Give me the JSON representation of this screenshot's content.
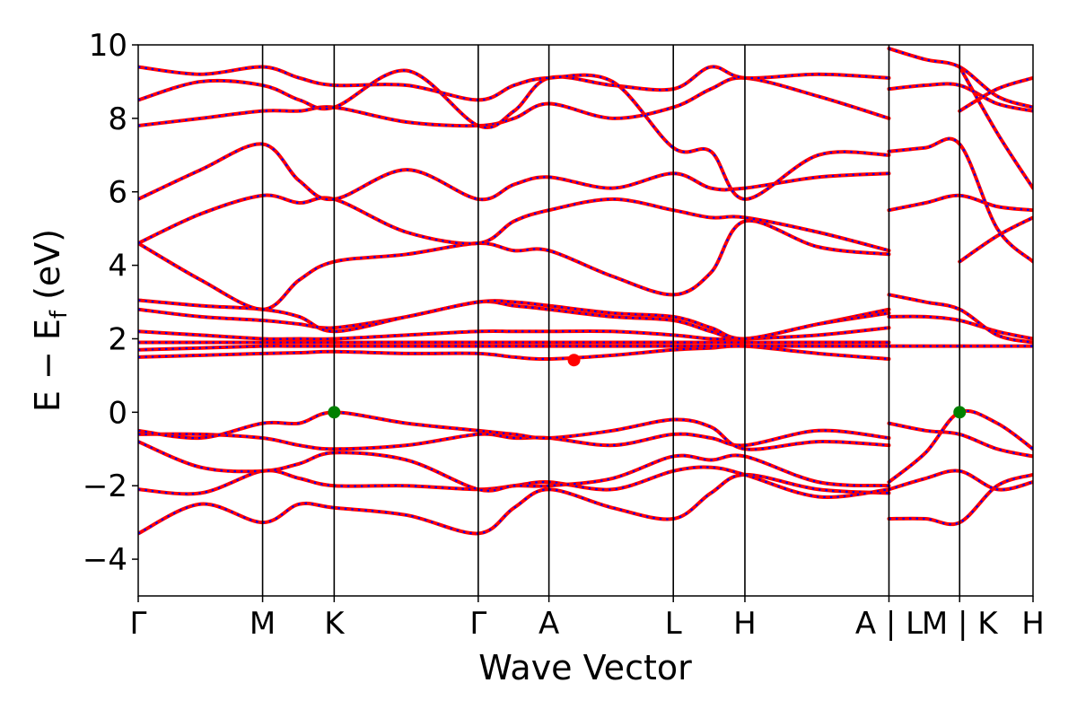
{
  "chart_data": {
    "type": "line",
    "title": "",
    "xlabel": "Wave Vector",
    "ylabel": "E − E",
    "ylabel_sub": "f",
    "ylabel_unit": "(eV)",
    "ylim": [
      -5,
      10
    ],
    "y_ticks": [
      -4,
      -2,
      0,
      2,
      4,
      6,
      8,
      10
    ],
    "y_tick_labels": [
      "−4",
      "−2",
      "0",
      "2",
      "4",
      "6",
      "8",
      "10"
    ],
    "x_range": [
      0,
      1
    ],
    "kpath": [
      {
        "pos": 0.0,
        "label": "Γ"
      },
      {
        "pos": 0.139,
        "label": "M"
      },
      {
        "pos": 0.219,
        "label": "K"
      },
      {
        "pos": 0.38,
        "label": "Γ"
      },
      {
        "pos": 0.459,
        "label": "A"
      },
      {
        "pos": 0.598,
        "label": "L"
      },
      {
        "pos": 0.678,
        "label": "H"
      },
      {
        "pos": 0.839,
        "label": "A | L"
      },
      {
        "pos": 0.918,
        "label": "M | K"
      },
      {
        "pos": 1.0,
        "label": "H"
      }
    ],
    "line_styles": {
      "series_a": {
        "color": "#ff0000",
        "style": "solid"
      },
      "series_b": {
        "color": "#0000ff",
        "style": "dotted"
      }
    },
    "bands": [
      {
        "x": [
          0,
          0.07,
          0.139,
          0.18,
          0.219,
          0.3,
          0.38,
          0.42,
          0.459,
          0.53,
          0.598,
          0.64,
          0.678,
          0.76,
          0.839
        ],
        "y": [
          -3.3,
          -2.5,
          -3.0,
          -2.5,
          -2.6,
          -2.8,
          -3.3,
          -2.6,
          -2.1,
          -2.6,
          -2.9,
          -2.2,
          -1.7,
          -2.1,
          -2.2
        ]
      },
      {
        "x": [
          0,
          0.07,
          0.139,
          0.18,
          0.219,
          0.3,
          0.38,
          0.42,
          0.459,
          0.53,
          0.598,
          0.64,
          0.678,
          0.76,
          0.839
        ],
        "y": [
          -2.1,
          -2.2,
          -1.6,
          -1.8,
          -2.0,
          -2.0,
          -2.1,
          -2.0,
          -1.9,
          -2.1,
          -1.6,
          -1.5,
          -1.7,
          -2.3,
          -2.1
        ]
      },
      {
        "x": [
          0,
          0.07,
          0.139,
          0.18,
          0.219,
          0.3,
          0.38,
          0.42,
          0.459,
          0.53,
          0.598,
          0.64,
          0.678,
          0.76,
          0.839
        ],
        "y": [
          -0.6,
          -0.6,
          -0.7,
          -0.9,
          -1.0,
          -0.9,
          -0.6,
          -0.7,
          -0.7,
          -0.9,
          -0.6,
          -0.7,
          -0.9,
          -0.5,
          -0.7
        ]
      },
      {
        "x": [
          0,
          0.07,
          0.139,
          0.18,
          0.219,
          0.3,
          0.38,
          0.42,
          0.459,
          0.53,
          0.598,
          0.64,
          0.678,
          0.76,
          0.839
        ],
        "y": [
          -0.5,
          -0.7,
          -0.3,
          -0.3,
          0.0,
          -0.3,
          -0.5,
          -0.6,
          -0.7,
          -0.5,
          -0.2,
          -0.4,
          -1.0,
          -0.8,
          -0.9
        ]
      },
      {
        "x": [
          0,
          0.07,
          0.139,
          0.18,
          0.219,
          0.3,
          0.38,
          0.42,
          0.459,
          0.53,
          0.598,
          0.64,
          0.678,
          0.76,
          0.839
        ],
        "y": [
          -0.8,
          -1.5,
          -1.6,
          -1.4,
          -1.1,
          -1.3,
          -2.1,
          -2.0,
          -2.0,
          -1.8,
          -1.2,
          -1.3,
          -1.2,
          -1.9,
          -2.0
        ]
      },
      {
        "x": [
          0,
          0.07,
          0.139,
          0.18,
          0.219,
          0.3,
          0.38,
          0.42,
          0.459,
          0.53,
          0.598,
          0.64,
          0.678,
          0.76,
          0.839
        ],
        "y": [
          1.5,
          1.55,
          1.6,
          1.62,
          1.65,
          1.6,
          1.6,
          1.5,
          1.45,
          1.55,
          1.7,
          1.75,
          1.8,
          1.6,
          1.45
        ]
      },
      {
        "x": [
          0,
          0.07,
          0.139,
          0.18,
          0.219,
          0.3,
          0.38,
          0.42,
          0.459,
          0.53,
          0.598,
          0.64,
          0.678,
          0.76,
          0.839
        ],
        "y": [
          1.7,
          1.75,
          1.8,
          1.8,
          1.8,
          1.8,
          1.8,
          1.8,
          1.8,
          1.8,
          1.8,
          1.8,
          1.8,
          1.8,
          1.8
        ]
      },
      {
        "x": [
          0,
          0.07,
          0.139,
          0.18,
          0.219,
          0.3,
          0.38,
          0.42,
          0.459,
          0.53,
          0.598,
          0.64,
          0.678,
          0.76,
          0.839
        ],
        "y": [
          1.9,
          1.9,
          1.9,
          1.9,
          1.9,
          1.9,
          1.9,
          1.9,
          1.9,
          1.9,
          1.9,
          1.9,
          1.9,
          1.9,
          1.9
        ]
      },
      {
        "x": [
          0,
          0.07,
          0.139,
          0.18,
          0.219,
          0.3,
          0.38,
          0.42,
          0.459,
          0.53,
          0.598,
          0.64,
          0.678,
          0.76,
          0.839
        ],
        "y": [
          2.2,
          2.1,
          2.0,
          2.0,
          2.0,
          2.1,
          2.2,
          2.2,
          2.2,
          2.2,
          2.1,
          2.0,
          2.0,
          2.1,
          2.3
        ]
      },
      {
        "x": [
          0,
          0.07,
          0.139,
          0.18,
          0.219,
          0.3,
          0.38,
          0.42,
          0.459,
          0.53,
          0.598,
          0.64,
          0.678,
          0.76,
          0.839
        ],
        "y": [
          2.8,
          2.6,
          2.5,
          2.4,
          2.3,
          2.6,
          3.0,
          2.9,
          2.8,
          2.6,
          2.5,
          2.2,
          2.0,
          2.4,
          2.8
        ]
      },
      {
        "x": [
          0,
          0.07,
          0.139,
          0.18,
          0.219,
          0.3,
          0.38,
          0.42,
          0.459,
          0.53,
          0.598,
          0.64,
          0.678,
          0.76,
          0.839
        ],
        "y": [
          3.05,
          2.9,
          2.8,
          2.6,
          2.2,
          2.6,
          3.0,
          3.0,
          2.9,
          2.7,
          2.6,
          2.3,
          2.0,
          2.4,
          2.7
        ]
      },
      {
        "x": [
          0,
          0.07,
          0.139,
          0.18,
          0.219,
          0.3,
          0.38,
          0.42,
          0.459,
          0.53,
          0.598,
          0.64,
          0.678,
          0.76,
          0.839
        ],
        "y": [
          4.6,
          3.6,
          2.8,
          3.6,
          4.1,
          4.3,
          4.6,
          4.4,
          4.4,
          3.7,
          3.2,
          3.8,
          5.2,
          4.5,
          4.3
        ]
      },
      {
        "x": [
          0,
          0.07,
          0.139,
          0.18,
          0.219,
          0.3,
          0.38,
          0.42,
          0.459,
          0.53,
          0.598,
          0.64,
          0.678,
          0.76,
          0.839
        ],
        "y": [
          4.6,
          5.4,
          5.9,
          5.7,
          5.8,
          4.9,
          4.6,
          5.2,
          5.5,
          5.8,
          5.5,
          5.3,
          5.3,
          4.9,
          4.4
        ]
      },
      {
        "x": [
          0,
          0.07,
          0.139,
          0.18,
          0.219,
          0.3,
          0.38,
          0.42,
          0.459,
          0.53,
          0.598,
          0.64,
          0.678,
          0.76,
          0.839
        ],
        "y": [
          5.8,
          6.6,
          7.3,
          6.3,
          5.8,
          6.6,
          5.8,
          6.2,
          6.4,
          6.1,
          6.5,
          6.1,
          6.1,
          6.4,
          6.5
        ]
      },
      {
        "x": [
          0,
          0.07,
          0.139,
          0.18,
          0.219,
          0.3,
          0.38,
          0.42,
          0.459,
          0.53,
          0.598,
          0.64,
          0.678,
          0.76,
          0.839
        ],
        "y": [
          7.8,
          8.0,
          8.2,
          8.2,
          8.3,
          7.9,
          7.8,
          8.0,
          8.4,
          8.0,
          8.3,
          8.8,
          9.1,
          8.6,
          8.0
        ]
      },
      {
        "x": [
          0,
          0.07,
          0.139,
          0.18,
          0.219,
          0.3,
          0.38,
          0.42,
          0.459,
          0.53,
          0.598,
          0.64,
          0.678,
          0.76,
          0.839
        ],
        "y": [
          8.5,
          9.0,
          8.9,
          8.5,
          8.3,
          9.3,
          7.8,
          8.2,
          9.1,
          8.9,
          8.8,
          9.4,
          9.1,
          9.2,
          9.1
        ]
      },
      {
        "x": [
          0,
          0.07,
          0.139,
          0.18,
          0.219,
          0.3,
          0.38,
          0.42,
          0.459,
          0.53,
          0.598,
          0.64,
          0.678,
          0.76,
          0.839
        ],
        "y": [
          9.4,
          9.2,
          9.4,
          9.1,
          8.9,
          8.9,
          8.5,
          8.9,
          9.1,
          9.0,
          7.2,
          7.1,
          5.8,
          7.0,
          7.0
        ]
      },
      {
        "x": [
          0.839,
          0.88,
          0.918,
          0.96,
          1.0
        ],
        "y": [
          -2.9,
          -2.9,
          -3.0,
          -2.0,
          -1.7
        ]
      },
      {
        "x": [
          0.839,
          0.88,
          0.918,
          0.96,
          1.0
        ],
        "y": [
          -2.1,
          -1.8,
          -1.6,
          -2.1,
          -1.9
        ]
      },
      {
        "x": [
          0.839,
          0.88,
          0.918,
          0.96,
          1.0
        ],
        "y": [
          -0.3,
          -0.5,
          -0.6,
          -1.0,
          -1.2
        ]
      },
      {
        "x": [
          0.839,
          0.88,
          0.918,
          0.96,
          1.0
        ],
        "y": [
          -1.9,
          -1.1,
          0.0,
          -0.3,
          -1.0
        ]
      },
      {
        "x": [
          0.839,
          0.88,
          0.918,
          0.96,
          1.0
        ],
        "y": [
          1.8,
          1.8,
          1.8,
          1.8,
          1.8
        ]
      },
      {
        "x": [
          0.839,
          0.88,
          0.918,
          0.96,
          1.0
        ],
        "y": [
          2.6,
          2.6,
          2.5,
          2.2,
          2.0
        ]
      },
      {
        "x": [
          0.839,
          0.88,
          0.918,
          0.96,
          1.0
        ],
        "y": [
          3.2,
          3.0,
          2.8,
          2.1,
          1.9
        ]
      },
      {
        "x": [
          0.839,
          0.88,
          0.918,
          0.96,
          1.0
        ],
        "y": [
          5.5,
          5.7,
          5.9,
          5.6,
          5.5
        ]
      },
      {
        "x": [
          0.839,
          0.88,
          0.918,
          0.96,
          1.0
        ],
        "y": [
          7.1,
          7.2,
          7.3,
          5.0,
          4.1
        ]
      },
      {
        "x": [
          0.839,
          0.88,
          0.918,
          0.96,
          1.0
        ],
        "y": [
          8.8,
          8.9,
          8.9,
          8.4,
          8.2
        ]
      },
      {
        "x": [
          0.839,
          0.88,
          0.918,
          0.96,
          1.0
        ],
        "y": [
          9.9,
          9.6,
          9.4,
          8.6,
          8.3
        ]
      },
      {
        "x": [
          0.918,
          0.96,
          1.0
        ],
        "y": [
          4.1,
          4.8,
          5.3
        ]
      },
      {
        "x": [
          0.918,
          0.96,
          1.0
        ],
        "y": [
          8.2,
          8.8,
          9.1
        ]
      },
      {
        "x": [
          0.918,
          0.96,
          1.0
        ],
        "y": [
          9.4,
          7.6,
          6.1
        ]
      }
    ],
    "markers": [
      {
        "x": 0.219,
        "y": 0.0,
        "color": "#008000"
      },
      {
        "x": 0.918,
        "y": 0.0,
        "color": "#008000"
      },
      {
        "x": 0.487,
        "y": 1.42,
        "color": "#ff0000"
      }
    ]
  }
}
